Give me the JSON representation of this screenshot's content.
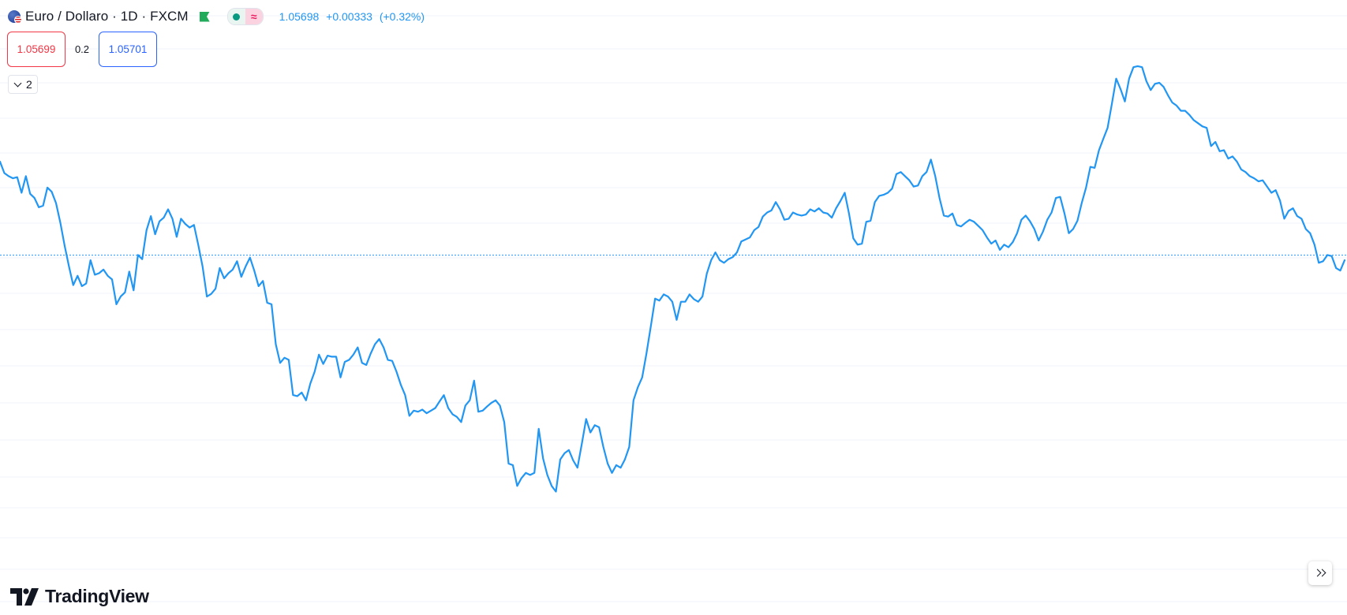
{
  "header": {
    "symbol_title": "Euro / Dollaro · 1D · FXCM",
    "icons": [
      "flag-icon",
      "market-open-flag-icon",
      "status-dot-icon",
      "delayed-data-icon"
    ],
    "status_glyph": "≈",
    "last_price": "1.05698",
    "change": "+0.00333",
    "change_percent": "(+0.32%)"
  },
  "trade": {
    "sell_price": "1.05699",
    "spread": "0.2",
    "buy_price": "1.05701"
  },
  "indicators_toggle": {
    "count": "2"
  },
  "branding": {
    "logo_text": "TradingView"
  },
  "colors": {
    "line": "#2196f3",
    "sell": "#f23645",
    "buy": "#2962ff",
    "quote": "#2196f3",
    "grid": "#f0f3fa",
    "market_open": "#22ab5b"
  },
  "chart_data": {
    "type": "line",
    "series": [
      {
        "values": [
          1.075,
          1.0728,
          1.0722,
          1.0718,
          1.072,
          1.069,
          1.0722,
          1.0688,
          1.068,
          1.0662,
          1.0665,
          1.07,
          1.0692,
          1.067,
          1.0632,
          1.0588,
          1.0548,
          1.0512,
          1.053,
          1.051,
          1.0515,
          1.056,
          1.0532,
          1.0535,
          1.0542,
          1.053,
          1.0523,
          1.0475,
          1.049,
          1.0498,
          1.0538,
          1.0502,
          1.057,
          1.0562,
          1.0618,
          1.0645,
          1.061,
          1.0635,
          1.0642,
          1.0658,
          1.064,
          1.0605,
          1.064,
          1.063,
          1.0623,
          1.0628,
          1.059,
          1.0548,
          1.049,
          1.0495,
          1.0505,
          1.0545,
          1.0525,
          1.0535,
          1.0542,
          1.0558,
          1.0528,
          1.0548,
          1.0565,
          1.054,
          1.051,
          1.052,
          1.0478,
          1.0475,
          1.0398,
          1.0362,
          1.0372,
          1.0368,
          1.03,
          1.0298,
          1.0305,
          1.029,
          1.0322,
          1.0345,
          1.0378,
          1.036,
          1.0376,
          1.0374,
          1.0374,
          1.0334,
          1.0364,
          1.0368,
          1.0378,
          1.0392,
          1.0362,
          1.0358,
          1.038,
          1.0398,
          1.0408,
          1.0392,
          1.0368,
          1.0366,
          1.0345,
          1.032,
          1.03,
          1.026,
          1.027,
          1.0268,
          1.0272,
          1.0265,
          1.027,
          1.0275,
          1.0288,
          1.03,
          1.0275,
          1.0263,
          1.0258,
          1.0248,
          1.028,
          1.029,
          1.0328,
          1.0268,
          1.027,
          1.0278,
          1.0285,
          1.029,
          1.028,
          1.0248,
          1.0168,
          1.0165,
          1.0125,
          1.014,
          1.015,
          1.0146,
          1.015,
          1.0235,
          1.0178,
          1.0146,
          1.0125,
          1.0114,
          1.0176,
          1.0188,
          1.0194,
          1.0174,
          1.016,
          1.0206,
          1.0254,
          1.0228,
          1.0242,
          1.0238,
          1.02,
          1.0168,
          1.015,
          1.0165,
          1.016,
          1.0176,
          1.02,
          1.029,
          1.0315,
          1.0334,
          1.038,
          1.0432,
          1.0486,
          1.0482,
          1.0494,
          1.049,
          1.048,
          1.0445,
          1.048,
          1.048,
          1.0494,
          1.0485,
          1.048,
          1.049,
          1.0534,
          1.056,
          1.0575,
          1.056,
          1.0555,
          1.0562,
          1.0566,
          1.0575,
          1.0596,
          1.06,
          1.0604,
          1.0618,
          1.0624,
          1.0644,
          1.0652,
          1.0656,
          1.0672,
          1.0658,
          1.0638,
          1.064,
          1.0652,
          1.0648,
          1.0646,
          1.0648,
          1.0658,
          1.0654,
          1.066,
          1.0652,
          1.065,
          1.0642,
          1.066,
          1.0674,
          1.069,
          1.065,
          1.0602,
          1.059,
          1.0592,
          1.0634,
          1.0636,
          1.0672,
          1.0684,
          1.0686,
          1.069,
          1.0698,
          1.0726,
          1.073,
          1.0722,
          1.0714,
          1.0702,
          1.0704,
          1.0722,
          1.073,
          1.0754,
          1.0722,
          1.068,
          1.0646,
          1.0644,
          1.065,
          1.0628,
          1.0625,
          1.0632,
          1.0638,
          1.0634,
          1.0626,
          1.0618,
          1.0604,
          1.0592,
          1.0598,
          1.058,
          1.059,
          1.0585,
          1.0595,
          1.0612,
          1.0638,
          1.0646,
          1.0635,
          1.062,
          1.0598,
          1.0615,
          1.0638,
          1.0652,
          1.068,
          1.0682,
          1.065,
          1.0612,
          1.062,
          1.0636,
          1.067,
          1.07,
          1.074,
          1.0738,
          1.0772,
          1.0794,
          1.0815,
          1.0862,
          1.091,
          1.089,
          1.0866,
          1.091,
          1.0932,
          1.0934,
          1.0932,
          1.0905,
          1.0888,
          1.09,
          1.0902,
          1.0894,
          1.0878,
          1.0864,
          1.0858,
          1.0848,
          1.0848,
          1.084,
          1.083,
          1.0824,
          1.0818,
          1.0815,
          1.078,
          1.0788,
          1.077,
          1.0772,
          1.0756,
          1.076,
          1.075,
          1.0735,
          1.073,
          1.0722,
          1.0718,
          1.0712,
          1.0714,
          1.0702,
          1.069,
          1.0695,
          1.0675,
          1.064,
          1.0655,
          1.066,
          1.0645,
          1.064,
          1.062,
          1.0612,
          1.059,
          1.0555,
          1.0558,
          1.057,
          1.0568,
          1.0545,
          1.054,
          1.056
        ]
      }
    ],
    "last_value": 1.05698,
    "grid": true,
    "title": "",
    "xlabel": "",
    "ylabel": ""
  }
}
